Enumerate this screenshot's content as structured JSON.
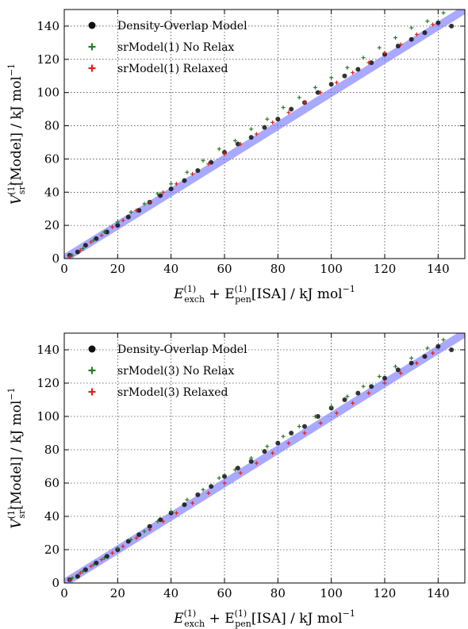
{
  "chart_data": [
    {
      "type": "scatter",
      "title": "",
      "xlabel": {
        "main": "E",
        "sup1": "(1)",
        "sub1": "exch",
        "plus": " + E",
        "sup2": "(1)",
        "sub2": "pen",
        "rest": "[ISA] / kJ mol",
        "unit_exp": "−1"
      },
      "ylabel": {
        "main": "V",
        "sup": "(1)",
        "sub": "sr",
        "rest": "[Model] / kJ mol",
        "unit_exp": "−1"
      },
      "xlim": [
        0,
        150
      ],
      "ylim": [
        0,
        150
      ],
      "xticks": [
        "0",
        "20",
        "40",
        "60",
        "80",
        "100",
        "120",
        "140"
      ],
      "yticks": [
        "0",
        "20",
        "40",
        "60",
        "80",
        "100",
        "120",
        "140"
      ],
      "grid": true,
      "legend_position": "top-left",
      "reference_band": {
        "from": [
          0,
          0
        ],
        "to": [
          150,
          150
        ],
        "color": "#7b7bff"
      },
      "series": [
        {
          "name": "Density-Overlap Model",
          "marker": "circle",
          "color": "#111111",
          "x": [
            2,
            5,
            8,
            12,
            16,
            20,
            24,
            28,
            32,
            36,
            40,
            45,
            50,
            55,
            60,
            65,
            70,
            75,
            80,
            85,
            90,
            95,
            100,
            105,
            110,
            115,
            120,
            125,
            130,
            135,
            140,
            145
          ],
          "y": [
            2,
            4,
            8,
            12,
            16,
            20,
            25,
            29,
            34,
            38,
            42,
            47,
            53,
            58,
            64,
            69,
            73,
            79,
            84,
            90,
            94,
            100,
            105,
            110,
            114,
            118,
            123,
            128,
            132,
            136,
            142,
            140
          ]
        },
        {
          "name": "srModel(1) No Relax",
          "marker": "plus",
          "color": "#208020",
          "x": [
            3,
            7,
            11,
            15,
            20,
            25,
            30,
            35,
            40,
            46,
            52,
            58,
            64,
            70,
            76,
            82,
            88,
            94,
            100,
            106,
            112,
            118,
            124,
            130,
            136,
            142
          ],
          "y": [
            2,
            6,
            11,
            16,
            22,
            28,
            33,
            39,
            45,
            52,
            59,
            66,
            71,
            78,
            84,
            91,
            97,
            103,
            109,
            115,
            121,
            127,
            133,
            139,
            143,
            148
          ]
        },
        {
          "name": "srModel(1) Relaxed",
          "marker": "plus",
          "color": "#e02020",
          "x": [
            2,
            6,
            10,
            14,
            18,
            22,
            27,
            32,
            37,
            42,
            48,
            54,
            60,
            66,
            72,
            78,
            84,
            90,
            96,
            102,
            108,
            114,
            120,
            126,
            132,
            138
          ],
          "y": [
            1,
            5,
            10,
            14,
            19,
            23,
            29,
            34,
            40,
            45,
            51,
            57,
            63,
            69,
            75,
            82,
            88,
            94,
            100,
            106,
            112,
            118,
            124,
            129,
            135,
            141
          ]
        }
      ]
    },
    {
      "type": "scatter",
      "title": "",
      "xlabel": {
        "main": "E",
        "sup1": "(1)",
        "sub1": "exch",
        "plus": " + E",
        "sup2": "(1)",
        "sub2": "pen",
        "rest": "[ISA] / kJ mol",
        "unit_exp": "−1"
      },
      "ylabel": {
        "main": "V",
        "sup": "(1)",
        "sub": "sr",
        "rest": "[Model] / kJ mol",
        "unit_exp": "−1"
      },
      "xlim": [
        0,
        150
      ],
      "ylim": [
        0,
        150
      ],
      "xticks": [
        "0",
        "20",
        "40",
        "60",
        "80",
        "100",
        "120",
        "140"
      ],
      "yticks": [
        "0",
        "20",
        "40",
        "60",
        "80",
        "100",
        "120",
        "140"
      ],
      "grid": true,
      "legend_position": "top-left",
      "reference_band": {
        "from": [
          0,
          0
        ],
        "to": [
          150,
          150
        ],
        "color": "#7b7bff"
      },
      "series": [
        {
          "name": "Density-Overlap Model",
          "marker": "circle",
          "color": "#111111",
          "x": [
            2,
            5,
            8,
            12,
            16,
            20,
            24,
            28,
            32,
            36,
            40,
            45,
            50,
            55,
            60,
            65,
            70,
            75,
            80,
            85,
            90,
            95,
            100,
            105,
            110,
            115,
            120,
            125,
            130,
            135,
            140,
            145
          ],
          "y": [
            2,
            4,
            8,
            12,
            16,
            20,
            25,
            29,
            34,
            38,
            42,
            47,
            53,
            58,
            64,
            69,
            73,
            79,
            84,
            90,
            94,
            100,
            105,
            110,
            114,
            118,
            123,
            128,
            132,
            136,
            142,
            140
          ]
        },
        {
          "name": "srModel(3) No Relax",
          "marker": "plus",
          "color": "#208020",
          "x": [
            3,
            7,
            11,
            15,
            20,
            25,
            30,
            35,
            40,
            46,
            52,
            58,
            64,
            70,
            76,
            82,
            88,
            94,
            100,
            106,
            112,
            118,
            124,
            130,
            136,
            142
          ],
          "y": [
            3,
            7,
            11,
            15,
            21,
            26,
            31,
            37,
            43,
            50,
            56,
            63,
            68,
            75,
            82,
            88,
            94,
            100,
            106,
            112,
            118,
            124,
            130,
            135,
            141,
            146
          ]
        },
        {
          "name": "srModel(3) Relaxed",
          "marker": "plus",
          "color": "#e02020",
          "x": [
            2,
            6,
            10,
            14,
            18,
            22,
            27,
            32,
            37,
            42,
            48,
            54,
            60,
            66,
            72,
            78,
            84,
            90,
            96,
            102,
            108,
            114,
            120,
            126,
            132,
            138
          ],
          "y": [
            2,
            6,
            10,
            14,
            18,
            22,
            27,
            32,
            37,
            42,
            48,
            54,
            60,
            66,
            72,
            78,
            84,
            90,
            96,
            102,
            108,
            114,
            120,
            126,
            132,
            138
          ]
        }
      ]
    }
  ]
}
